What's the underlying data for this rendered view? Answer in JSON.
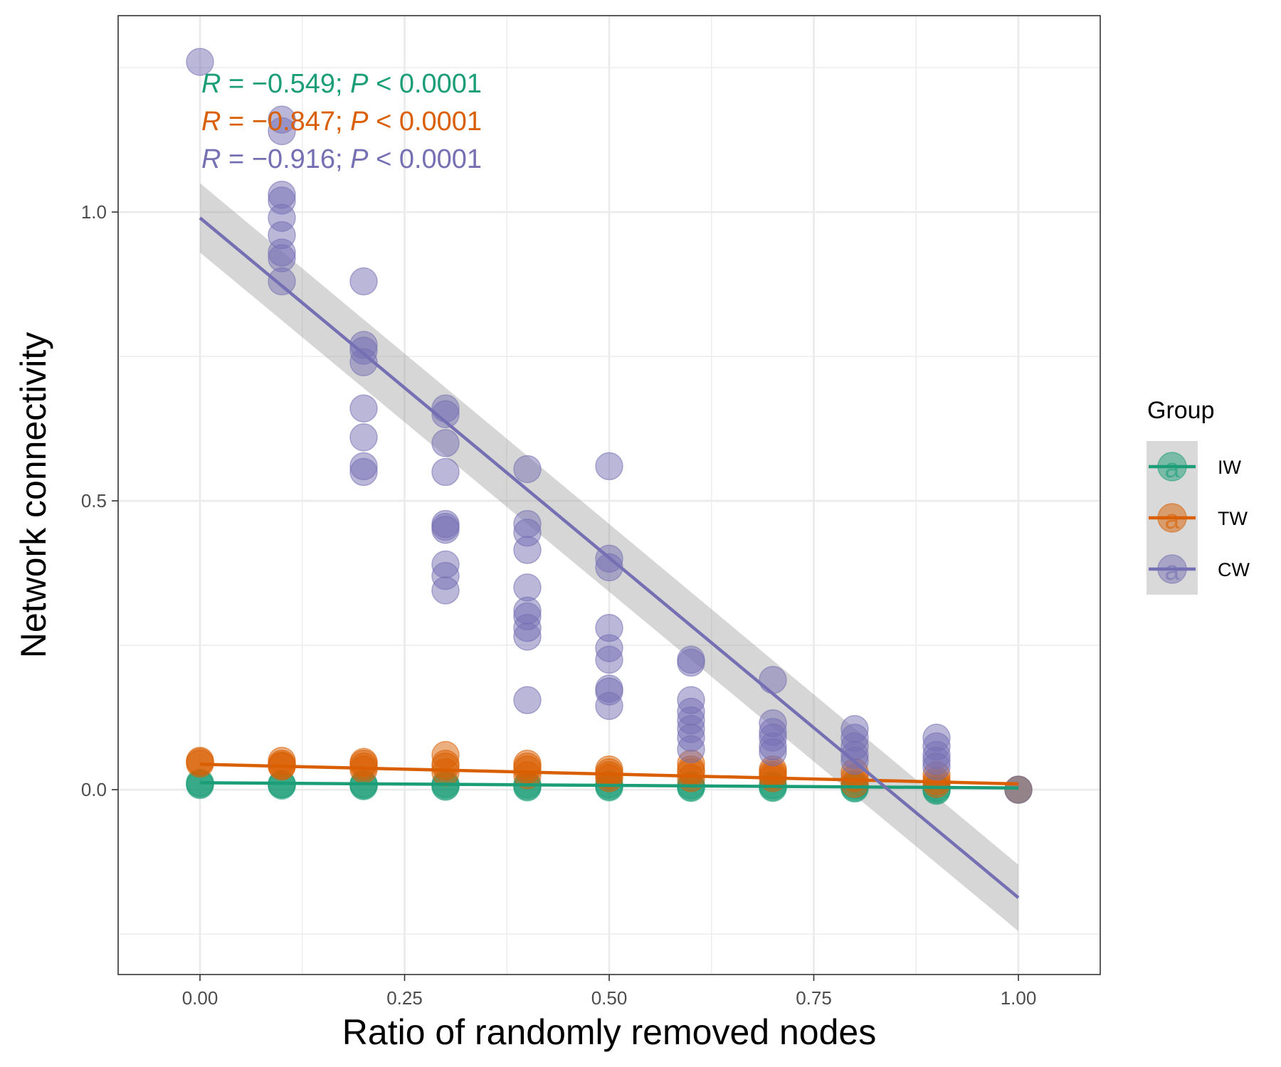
{
  "chart_data": {
    "type": "scatter",
    "xlabel": "Ratio of randomly removed nodes",
    "ylabel": "Network connectivity",
    "xlim": [
      -0.1,
      1.1
    ],
    "ylim": [
      -0.32,
      1.34
    ],
    "x_ticks": [
      0.0,
      0.25,
      0.5,
      0.75,
      1.0
    ],
    "x_tick_labels": [
      "0.00",
      "0.25",
      "0.50",
      "0.75",
      "1.00"
    ],
    "y_ticks": [
      0.0,
      0.5,
      1.0
    ],
    "y_tick_labels": [
      "0.0",
      "0.5",
      "1.0"
    ],
    "grid": true,
    "legend": {
      "title": "Group",
      "position": "right",
      "entries": [
        "IW",
        "TW",
        "CW"
      ],
      "key_glyph": "a"
    },
    "series": [
      {
        "name": "IW",
        "color": "#1b9e77",
        "points": [
          [
            0.0,
            0.01
          ],
          [
            0.0,
            0.012
          ],
          [
            0.0,
            0.008
          ],
          [
            0.1,
            0.01
          ],
          [
            0.1,
            0.007
          ],
          [
            0.1,
            0.009
          ],
          [
            0.2,
            0.01
          ],
          [
            0.2,
            0.008
          ],
          [
            0.2,
            0.006
          ],
          [
            0.3,
            0.01
          ],
          [
            0.3,
            0.007
          ],
          [
            0.3,
            0.005
          ],
          [
            0.4,
            0.009
          ],
          [
            0.4,
            0.006
          ],
          [
            0.4,
            0.004
          ],
          [
            0.5,
            0.009
          ],
          [
            0.5,
            0.006
          ],
          [
            0.5,
            0.004
          ],
          [
            0.6,
            0.008
          ],
          [
            0.6,
            0.005
          ],
          [
            0.6,
            0.003
          ],
          [
            0.7,
            0.008
          ],
          [
            0.7,
            0.005
          ],
          [
            0.7,
            0.003
          ],
          [
            0.8,
            0.007
          ],
          [
            0.8,
            0.004
          ],
          [
            0.8,
            0.002
          ],
          [
            0.9,
            0.0
          ],
          [
            0.9,
            -0.002
          ],
          [
            0.9,
            0.003
          ],
          [
            1.0,
            0.0
          ]
        ],
        "fit": {
          "x": [
            0.0,
            1.0
          ],
          "y": [
            0.012,
            0.003
          ]
        },
        "stat": {
          "R": "−0.549",
          "P": "< 0.0001"
        }
      },
      {
        "name": "TW",
        "color": "#d95f02",
        "points": [
          [
            0.0,
            0.048
          ],
          [
            0.0,
            0.045
          ],
          [
            0.0,
            0.05
          ],
          [
            0.1,
            0.05
          ],
          [
            0.1,
            0.045
          ],
          [
            0.1,
            0.042
          ],
          [
            0.1,
            0.04
          ],
          [
            0.2,
            0.048
          ],
          [
            0.2,
            0.045
          ],
          [
            0.2,
            0.04
          ],
          [
            0.2,
            0.035
          ],
          [
            0.3,
            0.06
          ],
          [
            0.3,
            0.045
          ],
          [
            0.3,
            0.04
          ],
          [
            0.3,
            0.03
          ],
          [
            0.4,
            0.045
          ],
          [
            0.4,
            0.04
          ],
          [
            0.4,
            0.035
          ],
          [
            0.4,
            0.025
          ],
          [
            0.5,
            0.035
          ],
          [
            0.5,
            0.03
          ],
          [
            0.5,
            0.025
          ],
          [
            0.5,
            0.02
          ],
          [
            0.6,
            0.045
          ],
          [
            0.6,
            0.035
          ],
          [
            0.6,
            0.03
          ],
          [
            0.6,
            0.02
          ],
          [
            0.7,
            0.035
          ],
          [
            0.7,
            0.03
          ],
          [
            0.7,
            0.025
          ],
          [
            0.7,
            0.02
          ],
          [
            0.8,
            0.03
          ],
          [
            0.8,
            0.02
          ],
          [
            0.8,
            0.01
          ],
          [
            0.9,
            0.025
          ],
          [
            0.9,
            0.015
          ],
          [
            0.9,
            0.01
          ],
          [
            1.0,
            0.0
          ]
        ],
        "fit": {
          "x": [
            0.0,
            1.0
          ],
          "y": [
            0.044,
            0.01
          ]
        },
        "stat": {
          "R": "−0.847",
          "P": "< 0.0001"
        }
      },
      {
        "name": "CW",
        "color": "#7570b3",
        "points": [
          [
            0.0,
            1.26
          ],
          [
            0.1,
            1.16
          ],
          [
            0.1,
            1.14
          ],
          [
            0.1,
            1.03
          ],
          [
            0.1,
            1.02
          ],
          [
            0.1,
            0.99
          ],
          [
            0.1,
            0.96
          ],
          [
            0.1,
            0.93
          ],
          [
            0.1,
            0.92
          ],
          [
            0.1,
            0.88
          ],
          [
            0.2,
            0.88
          ],
          [
            0.2,
            0.77
          ],
          [
            0.2,
            0.76
          ],
          [
            0.2,
            0.74
          ],
          [
            0.2,
            0.66
          ],
          [
            0.2,
            0.61
          ],
          [
            0.2,
            0.56
          ],
          [
            0.2,
            0.55
          ],
          [
            0.3,
            0.66
          ],
          [
            0.3,
            0.65
          ],
          [
            0.3,
            0.6
          ],
          [
            0.3,
            0.55
          ],
          [
            0.3,
            0.46
          ],
          [
            0.3,
            0.455
          ],
          [
            0.3,
            0.45
          ],
          [
            0.3,
            0.39
          ],
          [
            0.3,
            0.37
          ],
          [
            0.3,
            0.345
          ],
          [
            0.4,
            0.555
          ],
          [
            0.4,
            0.46
          ],
          [
            0.4,
            0.445
          ],
          [
            0.4,
            0.415
          ],
          [
            0.4,
            0.35
          ],
          [
            0.4,
            0.31
          ],
          [
            0.4,
            0.3
          ],
          [
            0.4,
            0.28
          ],
          [
            0.4,
            0.265
          ],
          [
            0.4,
            0.155
          ],
          [
            0.5,
            0.56
          ],
          [
            0.5,
            0.4
          ],
          [
            0.5,
            0.385
          ],
          [
            0.5,
            0.28
          ],
          [
            0.5,
            0.245
          ],
          [
            0.5,
            0.225
          ],
          [
            0.5,
            0.175
          ],
          [
            0.5,
            0.17
          ],
          [
            0.5,
            0.145
          ],
          [
            0.6,
            0.225
          ],
          [
            0.6,
            0.22
          ],
          [
            0.6,
            0.155
          ],
          [
            0.6,
            0.135
          ],
          [
            0.6,
            0.12
          ],
          [
            0.6,
            0.105
          ],
          [
            0.6,
            0.09
          ],
          [
            0.6,
            0.07
          ],
          [
            0.7,
            0.19
          ],
          [
            0.7,
            0.115
          ],
          [
            0.7,
            0.1
          ],
          [
            0.7,
            0.09
          ],
          [
            0.7,
            0.075
          ],
          [
            0.7,
            0.065
          ],
          [
            0.8,
            0.105
          ],
          [
            0.8,
            0.09
          ],
          [
            0.8,
            0.075
          ],
          [
            0.8,
            0.06
          ],
          [
            0.8,
            0.05
          ],
          [
            0.9,
            0.09
          ],
          [
            0.9,
            0.075
          ],
          [
            0.9,
            0.06
          ],
          [
            0.9,
            0.05
          ],
          [
            0.9,
            0.04
          ],
          [
            1.0,
            0.0
          ]
        ],
        "fit": {
          "x": [
            0.0,
            1.0
          ],
          "y": [
            0.99,
            -0.187
          ]
        },
        "band": {
          "x": [
            0.0,
            1.0
          ],
          "upper": [
            1.05,
            -0.13
          ],
          "lower": [
            0.93,
            -0.245
          ]
        },
        "stat": {
          "R": "−0.916",
          "P": "< 0.0001"
        }
      }
    ]
  }
}
